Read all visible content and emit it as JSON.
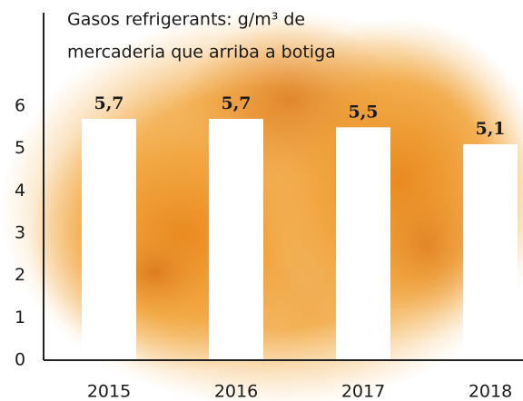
{
  "chart_data": {
    "type": "bar",
    "title": [
      "Gasos refrigerants: g/m³ de",
      "mercaderia que arriba a botiga"
    ],
    "categories": [
      "2015",
      "2016",
      "2017",
      "2018"
    ],
    "values": [
      5.7,
      5.7,
      5.5,
      5.1
    ],
    "value_labels": [
      "5,7",
      "5,7",
      "5,5",
      "5,1"
    ],
    "color": "#ffffff",
    "ylim": [
      0,
      6
    ],
    "yticks": [
      0,
      1,
      2,
      3,
      4,
      5,
      6
    ],
    "grid": false
  }
}
